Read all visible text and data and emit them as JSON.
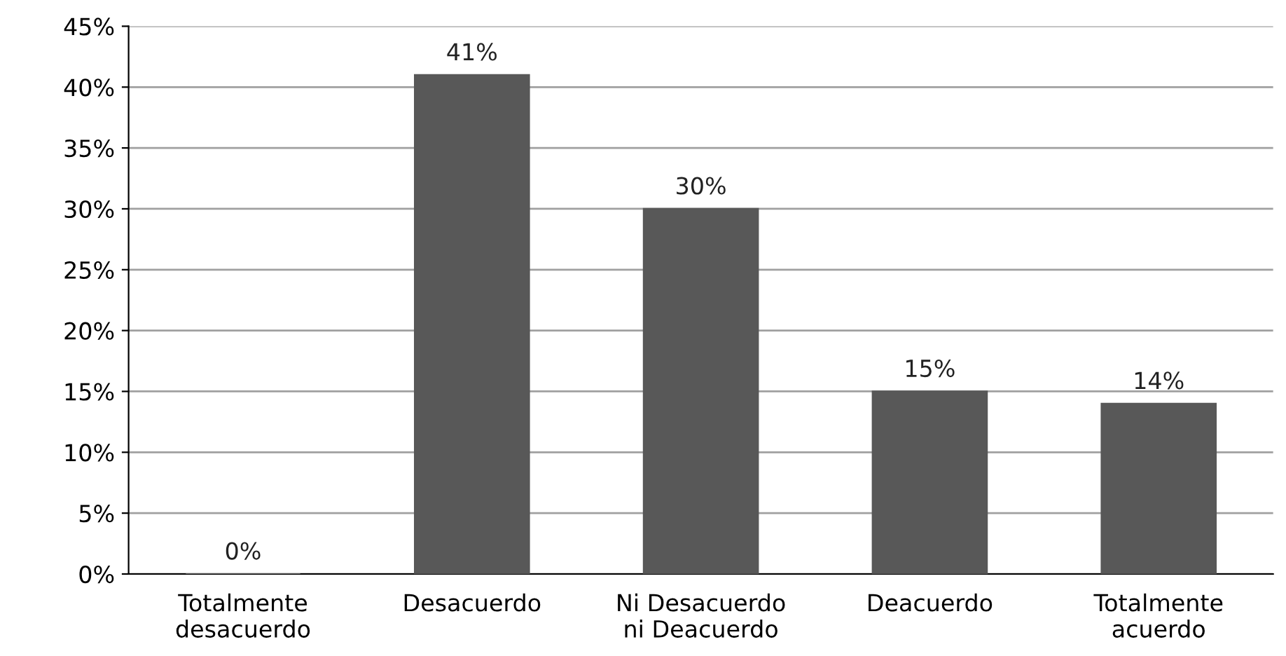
{
  "chart_data": {
    "type": "bar",
    "categories": [
      "Totalmente\ndesacuerdo",
      "Desacuerdo",
      "Ni Desacuerdo\nni Deacuerdo",
      "Deacuerdo",
      "Totalmente\nacuerdo"
    ],
    "values": [
      0,
      41,
      30,
      15,
      14
    ],
    "value_labels": [
      "0%",
      "41%",
      "30%",
      "15%",
      "14%"
    ],
    "color": "#585858",
    "ylim": [
      0,
      45
    ],
    "yticks": [
      {
        "value": 0,
        "label": "0%"
      },
      {
        "value": 5,
        "label": "5%"
      },
      {
        "value": 10,
        "label": "10%"
      },
      {
        "value": 15,
        "label": "15%"
      },
      {
        "value": 20,
        "label": "20%"
      },
      {
        "value": 25,
        "label": "25%"
      },
      {
        "value": 30,
        "label": "30%"
      },
      {
        "value": 35,
        "label": "35%"
      },
      {
        "value": 40,
        "label": "40%"
      },
      {
        "value": 45,
        "label": "45%"
      }
    ],
    "grid": "y",
    "legend": false
  }
}
